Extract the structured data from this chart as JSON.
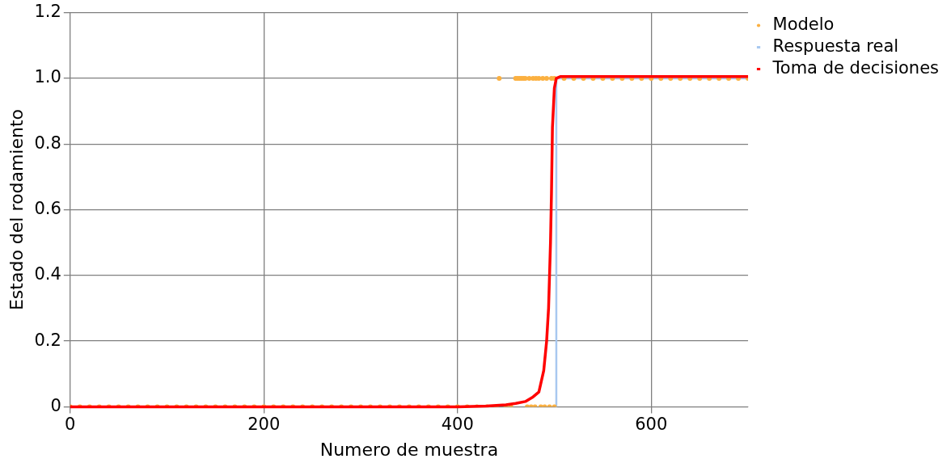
{
  "chart_data": {
    "type": "line",
    "xlabel": "Numero de muestra",
    "ylabel": "Estado del rodamiento",
    "xlim": [
      0,
      700
    ],
    "ylim": [
      0,
      1.2
    ],
    "xticks": [
      0,
      200,
      400,
      600
    ],
    "yticks": [
      0,
      {
        "value": 0.2,
        "label": "0.2"
      },
      {
        "value": 0.4,
        "label": "0.4"
      },
      {
        "value": 0.6,
        "label": "0.6"
      },
      {
        "value": 0.8,
        "label": "0.8"
      },
      {
        "value": 1,
        "label": "1.0"
      },
      {
        "value": 1.2,
        "label": "1.2"
      }
    ],
    "grid": true,
    "legend": "top right",
    "marker": "none",
    "line_style": "solid",
    "series": [
      {
        "name": "Modelo",
        "type": "scatter",
        "marker": "circle",
        "color": "#fbb040",
        "x": [
          0,
          10,
          20,
          30,
          40,
          50,
          60,
          70,
          80,
          90,
          100,
          110,
          120,
          130,
          140,
          150,
          160,
          170,
          180,
          190,
          200,
          210,
          220,
          230,
          240,
          250,
          260,
          270,
          280,
          290,
          300,
          310,
          320,
          330,
          340,
          350,
          360,
          370,
          380,
          390,
          400,
          410,
          420,
          430,
          440,
          450,
          455,
          472,
          476,
          480,
          486,
          490,
          495,
          500,
          443,
          460,
          462,
          464,
          466,
          468,
          470,
          474,
          478,
          481,
          484,
          488,
          492,
          497,
          500,
          510,
          520,
          530,
          540,
          550,
          560,
          570,
          580,
          590,
          600,
          610,
          620,
          630,
          640,
          650,
          660,
          670,
          680,
          690,
          700
        ],
        "values": [
          0,
          0,
          0,
          0,
          0,
          0,
          0,
          0,
          0,
          0,
          0,
          0,
          0,
          0,
          0,
          0,
          0,
          0,
          0,
          0,
          0,
          0,
          0,
          0,
          0,
          0,
          0,
          0,
          0,
          0,
          0,
          0,
          0,
          0,
          0,
          0,
          0,
          0,
          0,
          0,
          0,
          0,
          0,
          0,
          0,
          0,
          0,
          0,
          0,
          0,
          0,
          0,
          0,
          0,
          1,
          1,
          1,
          1,
          1,
          1,
          1,
          1,
          1,
          1,
          1,
          1,
          1,
          1,
          1,
          1,
          1,
          1,
          1,
          1,
          1,
          1,
          1,
          1,
          1,
          1,
          1,
          1,
          1,
          1,
          1,
          1,
          1,
          1,
          1
        ]
      },
      {
        "name": "Respuesta real",
        "color": "#a8c8f0",
        "x": [
          502,
          502,
          700
        ],
        "values": [
          0,
          1,
          1
        ]
      },
      {
        "name": "Toma de decisiones",
        "color": "#ff0000",
        "x": [
          0,
          400,
          430,
          450,
          460,
          470,
          478,
          484,
          489,
          492,
          494,
          496,
          497,
          498,
          500,
          502,
          506,
          520,
          600,
          700
        ],
        "values": [
          0,
          0,
          0.002,
          0.006,
          0.01,
          0.016,
          0.03,
          0.045,
          0.11,
          0.2,
          0.3,
          0.5,
          0.65,
          0.85,
          0.97,
          1,
          1.005,
          1.005,
          1.005,
          1.005
        ]
      }
    ]
  }
}
